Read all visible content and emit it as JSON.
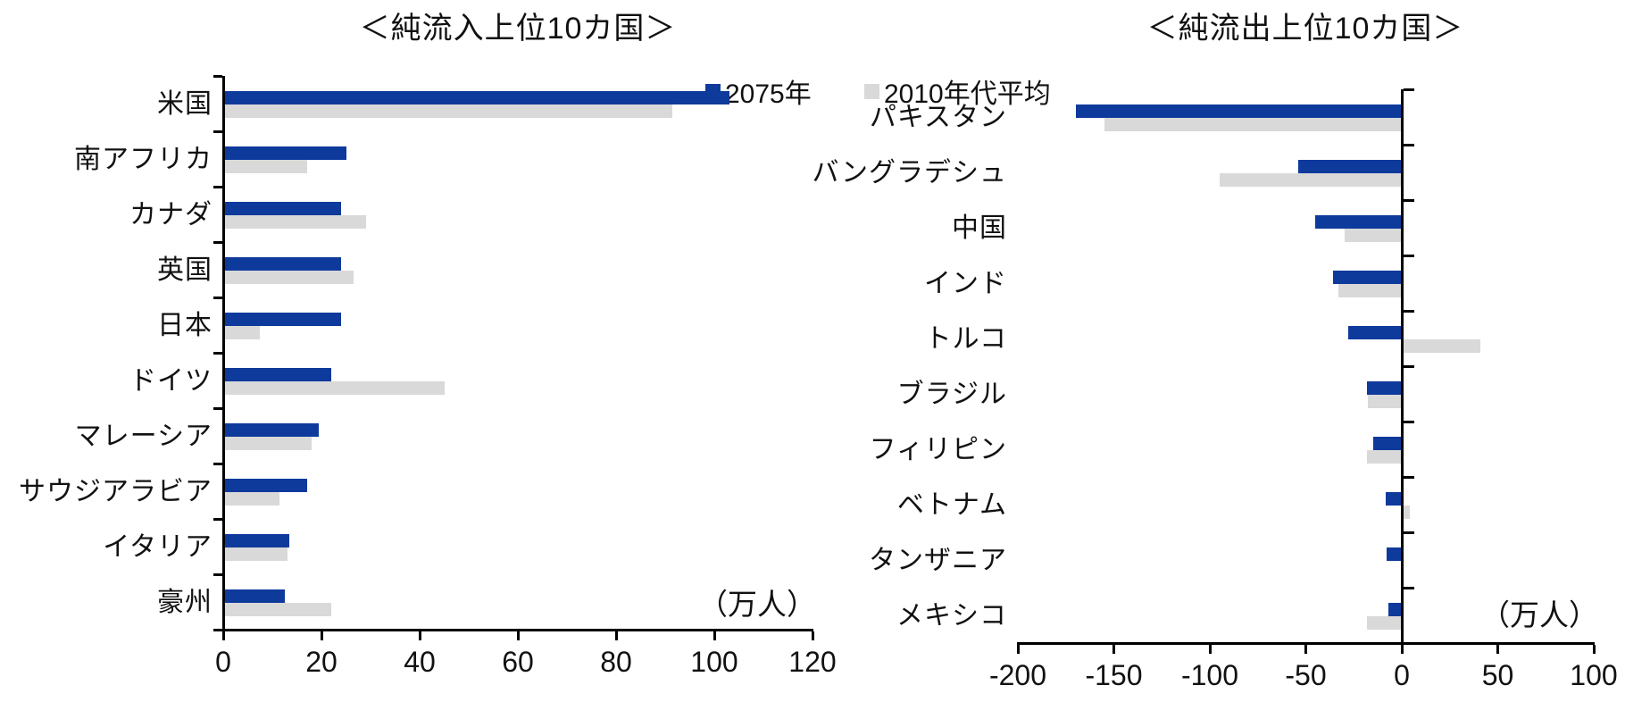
{
  "page": {
    "background": "#ffffff",
    "text_color": "#111111",
    "axis_color": "#000000"
  },
  "legend": {
    "items": [
      {
        "label": "2075年",
        "color": "#0e3a9c"
      },
      {
        "label": "2010年代平均",
        "color": "#d9d9d9"
      }
    ]
  },
  "chart_data": [
    {
      "type": "bar",
      "orientation": "horizontal",
      "title": "＜純流入上位10カ国＞",
      "unit_label": "（万人）",
      "categories": [
        "米国",
        "南アフリカ",
        "カナダ",
        "英国",
        "日本",
        "ドイツ",
        "マレーシア",
        "サウジアラビア",
        "イタリア",
        "豪州"
      ],
      "series": [
        {
          "name": "2075年",
          "color": "#0e3a9c",
          "values": [
            103,
            25,
            24,
            24,
            24,
            22,
            19.5,
            17,
            13.5,
            12.5
          ]
        },
        {
          "name": "2010年代平均",
          "color": "#d9d9d9",
          "values": [
            91.5,
            17,
            29,
            26.5,
            7.5,
            45,
            18,
            11.5,
            13,
            22
          ]
        }
      ],
      "xlim": [
        0,
        120
      ],
      "xticks": [
        0,
        20,
        40,
        60,
        80,
        100,
        120
      ],
      "grid": false,
      "legend_position": "top-right"
    },
    {
      "type": "bar",
      "orientation": "horizontal",
      "title": "＜純流出上位10カ国＞",
      "unit_label": "（万人）",
      "categories": [
        "パキスタン",
        "バングラデシュ",
        "中国",
        "インド",
        "トルコ",
        "ブラジル",
        "フィリピン",
        "ベトナム",
        "タンザニア",
        "メキシコ"
      ],
      "series": [
        {
          "name": "2075年",
          "color": "#0e3a9c",
          "values": [
            -170,
            -54,
            -45,
            -36,
            -28,
            -18,
            -15,
            -8.5,
            -8,
            -7
          ]
        },
        {
          "name": "2010年代平均",
          "color": "#d9d9d9",
          "values": [
            -155,
            -95,
            -30,
            -33,
            41,
            -17.5,
            -18,
            4,
            0,
            -18
          ]
        }
      ],
      "xlim": [
        -200,
        100
      ],
      "xticks": [
        -200,
        -150,
        -100,
        -50,
        0,
        50,
        100
      ],
      "grid": false,
      "legend_position": "top-right"
    }
  ]
}
